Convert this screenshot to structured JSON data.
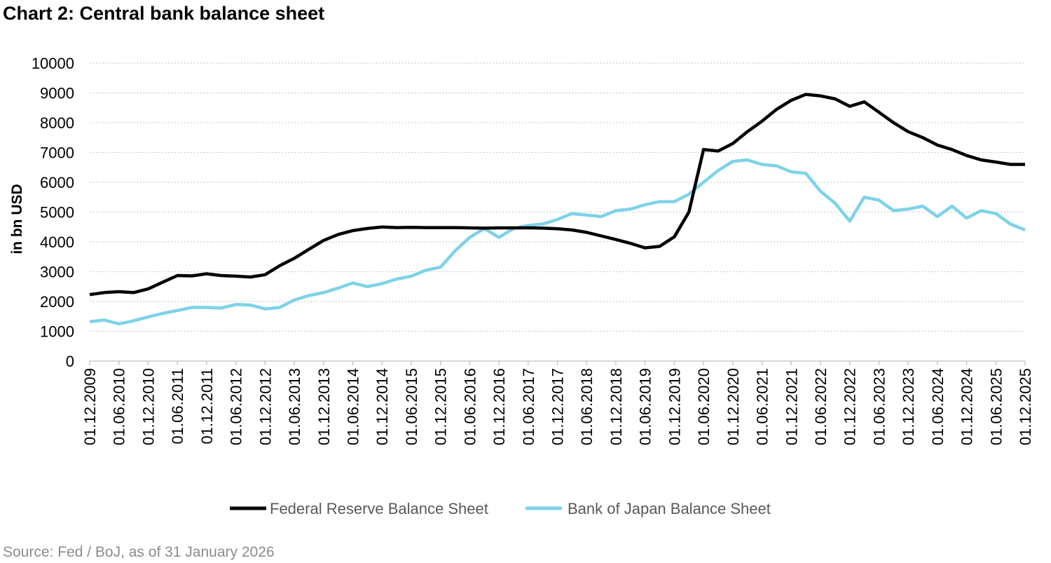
{
  "chart_data": {
    "type": "line",
    "title": "Chart 2: Central bank balance sheet",
    "ylabel": "in bn USD",
    "xlabel": "",
    "ylim": [
      0,
      10000
    ],
    "yticks": [
      0,
      1000,
      2000,
      3000,
      4000,
      5000,
      6000,
      7000,
      8000,
      9000,
      10000
    ],
    "grid": true,
    "legend_position": "bottom",
    "source": "Source: Fed / BoJ, as of 31 January 2026",
    "x_tick_labels": [
      "01.12.2009",
      "01.06.2010",
      "01.12.2010",
      "01.06.2011",
      "01.12.2011",
      "01.06.2012",
      "01.12.2012",
      "01.06.2013",
      "01.12.2013",
      "01.06.2014",
      "01.12.2014",
      "01.06.2015",
      "01.12.2015",
      "01.06.2016",
      "01.12.2016",
      "01.06.2017",
      "01.12.2017",
      "01.06.2018",
      "01.12.2018",
      "01.06.2019",
      "01.12.2019",
      "01.06.2020",
      "01.12.2020",
      "01.06.2021",
      "01.12.2021",
      "01.06.2022",
      "01.12.2022",
      "01.06.2023",
      "01.12.2023",
      "01.06.2024",
      "01.12.2024",
      "01.06.2025",
      "01.12.2025"
    ],
    "x": [
      "2009-12",
      "2010-03",
      "2010-06",
      "2010-09",
      "2010-12",
      "2011-03",
      "2011-06",
      "2011-09",
      "2011-12",
      "2012-03",
      "2012-06",
      "2012-09",
      "2012-12",
      "2013-03",
      "2013-06",
      "2013-09",
      "2013-12",
      "2014-03",
      "2014-06",
      "2014-09",
      "2014-12",
      "2015-03",
      "2015-06",
      "2015-09",
      "2015-12",
      "2016-03",
      "2016-06",
      "2016-09",
      "2016-12",
      "2017-03",
      "2017-06",
      "2017-09",
      "2017-12",
      "2018-03",
      "2018-06",
      "2018-09",
      "2018-12",
      "2019-03",
      "2019-06",
      "2019-09",
      "2019-12",
      "2020-03",
      "2020-06",
      "2020-09",
      "2020-12",
      "2021-03",
      "2021-06",
      "2021-09",
      "2021-12",
      "2022-03",
      "2022-06",
      "2022-09",
      "2022-12",
      "2023-03",
      "2023-06",
      "2023-09",
      "2023-12",
      "2024-03",
      "2024-06",
      "2024-09",
      "2024-12",
      "2025-03",
      "2025-06",
      "2025-09",
      "2025-12"
    ],
    "series": [
      {
        "name": "Federal Reserve Balance Sheet",
        "color": "#000000",
        "values": [
          2230,
          2300,
          2330,
          2300,
          2420,
          2650,
          2870,
          2860,
          2930,
          2870,
          2850,
          2820,
          2900,
          3200,
          3450,
          3750,
          4050,
          4250,
          4380,
          4450,
          4500,
          4480,
          4490,
          4480,
          4480,
          4480,
          4470,
          4460,
          4470,
          4470,
          4470,
          4460,
          4440,
          4400,
          4320,
          4200,
          4080,
          3950,
          3800,
          3850,
          4170,
          5000,
          7100,
          7050,
          7300,
          7700,
          8050,
          8450,
          8750,
          8950,
          8900,
          8800,
          8550,
          8700,
          8350,
          8000,
          7700,
          7500,
          7250,
          7100,
          6900,
          6750,
          6680,
          6600,
          6600
        ]
      },
      {
        "name": "Bank of Japan Balance Sheet",
        "color": "#7dd3e8",
        "values": [
          1320,
          1380,
          1250,
          1350,
          1480,
          1600,
          1700,
          1800,
          1800,
          1780,
          1900,
          1880,
          1750,
          1800,
          2050,
          2200,
          2300,
          2450,
          2620,
          2500,
          2600,
          2750,
          2850,
          3050,
          3150,
          3700,
          4150,
          4450,
          4150,
          4450,
          4550,
          4600,
          4750,
          4950,
          4900,
          4850,
          5050,
          5100,
          5250,
          5350,
          5350,
          5600,
          6000,
          6400,
          6700,
          6750,
          6600,
          6550,
          6350,
          6300,
          5700,
          5300,
          4700,
          5500,
          5400,
          5050,
          5100,
          5200,
          4850,
          5200,
          4800,
          5050,
          4950,
          4600,
          4400
        ]
      }
    ]
  }
}
